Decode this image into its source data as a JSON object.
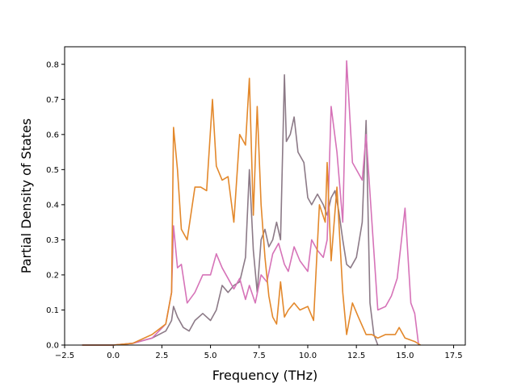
{
  "chart_data": {
    "type": "line",
    "title": "",
    "xlabel": "Frequency (THz)",
    "ylabel": "Partial Density of States",
    "xlim": [
      -2.5,
      18.1
    ],
    "ylim": [
      0,
      0.85
    ],
    "xticks": [
      -2.5,
      0.0,
      2.5,
      5.0,
      7.5,
      10.0,
      12.5,
      15.0,
      17.5
    ],
    "xtick_labels": [
      "−2.5",
      "0.0",
      "2.5",
      "5.0",
      "7.5",
      "10.0",
      "12.5",
      "15.0",
      "17.5"
    ],
    "yticks": [
      0.0,
      0.1,
      0.2,
      0.3,
      0.4,
      0.5,
      0.6,
      0.7,
      0.8
    ],
    "ytick_labels": [
      "0.0",
      "0.1",
      "0.2",
      "0.3",
      "0.4",
      "0.5",
      "0.6",
      "0.7",
      "0.8"
    ],
    "grid": false,
    "legend": "none",
    "series": [
      {
        "name": "series-grey",
        "color": "#8c7a87",
        "x": [
          -1.6,
          0.0,
          1.0,
          2.0,
          2.7,
          3.0,
          3.1,
          3.3,
          3.6,
          3.9,
          4.2,
          4.6,
          5.0,
          5.3,
          5.6,
          5.9,
          6.2,
          6.5,
          6.8,
          7.0,
          7.2,
          7.4,
          7.6,
          7.8,
          8.0,
          8.2,
          8.4,
          8.6,
          8.8,
          8.9,
          9.1,
          9.3,
          9.5,
          9.8,
          10.0,
          10.2,
          10.5,
          10.8,
          11.0,
          11.2,
          11.4,
          11.6,
          11.8,
          12.0,
          12.2,
          12.5,
          12.8,
          13.0,
          13.2,
          13.4,
          13.6
        ],
        "y": [
          0.0,
          0.0,
          0.005,
          0.02,
          0.04,
          0.07,
          0.11,
          0.08,
          0.05,
          0.04,
          0.07,
          0.09,
          0.07,
          0.1,
          0.17,
          0.15,
          0.17,
          0.18,
          0.25,
          0.5,
          0.27,
          0.15,
          0.3,
          0.33,
          0.28,
          0.3,
          0.35,
          0.3,
          0.77,
          0.58,
          0.6,
          0.65,
          0.55,
          0.52,
          0.42,
          0.4,
          0.43,
          0.4,
          0.37,
          0.42,
          0.44,
          0.38,
          0.3,
          0.23,
          0.22,
          0.25,
          0.35,
          0.64,
          0.12,
          0.03,
          0.0
        ]
      },
      {
        "name": "series-pink",
        "color": "#d673b8",
        "x": [
          -1.6,
          0.0,
          1.0,
          2.0,
          2.7,
          3.0,
          3.1,
          3.3,
          3.5,
          3.8,
          4.2,
          4.6,
          5.0,
          5.3,
          5.6,
          5.9,
          6.2,
          6.5,
          6.8,
          7.0,
          7.3,
          7.6,
          7.9,
          8.2,
          8.5,
          8.8,
          9.0,
          9.3,
          9.6,
          10.0,
          10.2,
          10.5,
          10.8,
          11.0,
          11.2,
          11.5,
          11.8,
          12.0,
          12.3,
          12.5,
          12.8,
          13.0,
          13.3,
          13.6,
          14.0,
          14.3,
          14.6,
          15.0,
          15.3,
          15.5,
          15.7
        ],
        "y": [
          0.0,
          0.0,
          0.005,
          0.02,
          0.06,
          0.15,
          0.34,
          0.22,
          0.23,
          0.12,
          0.15,
          0.2,
          0.2,
          0.26,
          0.22,
          0.19,
          0.16,
          0.19,
          0.13,
          0.17,
          0.12,
          0.2,
          0.18,
          0.26,
          0.29,
          0.23,
          0.21,
          0.28,
          0.24,
          0.21,
          0.3,
          0.27,
          0.25,
          0.3,
          0.68,
          0.55,
          0.35,
          0.81,
          0.52,
          0.5,
          0.47,
          0.6,
          0.35,
          0.1,
          0.11,
          0.14,
          0.19,
          0.39,
          0.12,
          0.09,
          0.0
        ]
      },
      {
        "name": "series-orange",
        "color": "#e3882b",
        "x": [
          -1.6,
          0.0,
          1.0,
          2.0,
          2.7,
          3.0,
          3.1,
          3.3,
          3.5,
          3.8,
          4.2,
          4.5,
          4.8,
          5.1,
          5.3,
          5.6,
          5.9,
          6.2,
          6.5,
          6.8,
          7.0,
          7.2,
          7.4,
          7.6,
          7.8,
          8.0,
          8.2,
          8.4,
          8.6,
          8.8,
          9.0,
          9.3,
          9.6,
          10.0,
          10.3,
          10.6,
          10.9,
          11.0,
          11.2,
          11.5,
          11.8,
          12.0,
          12.3,
          12.6,
          13.0,
          13.3,
          13.6,
          14.0,
          14.5,
          14.7,
          15.0,
          15.5,
          15.8
        ],
        "y": [
          0.0,
          0.0,
          0.005,
          0.03,
          0.06,
          0.15,
          0.62,
          0.5,
          0.33,
          0.3,
          0.45,
          0.45,
          0.44,
          0.7,
          0.51,
          0.47,
          0.48,
          0.35,
          0.6,
          0.57,
          0.76,
          0.37,
          0.68,
          0.4,
          0.25,
          0.14,
          0.08,
          0.06,
          0.18,
          0.08,
          0.1,
          0.12,
          0.1,
          0.11,
          0.07,
          0.4,
          0.35,
          0.52,
          0.24,
          0.45,
          0.15,
          0.03,
          0.12,
          0.08,
          0.03,
          0.03,
          0.02,
          0.03,
          0.03,
          0.05,
          0.02,
          0.01,
          0.0
        ]
      }
    ]
  }
}
